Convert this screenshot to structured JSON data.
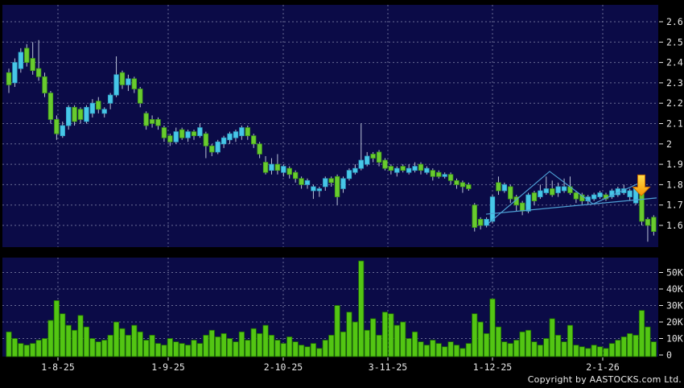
{
  "chart_data": {
    "type": "candlestick",
    "panels": [
      "price",
      "volume"
    ],
    "grid": true,
    "price_axis": {
      "side": "right",
      "ticks": [
        "2.6",
        "2.5",
        "2.4",
        "2.3",
        "2.2",
        "2.1",
        "2",
        "1.9",
        "1.8",
        "1.7",
        "1.6"
      ]
    },
    "volume_axis": {
      "side": "right",
      "ticks": [
        "50K",
        "40K",
        "30K",
        "20K",
        "10K",
        "0"
      ]
    },
    "x_ticks": [
      {
        "label": "1-8-25",
        "x": 72
      },
      {
        "label": "1-9-25",
        "x": 209
      },
      {
        "label": "2-10-25",
        "x": 352
      },
      {
        "label": "3-11-25",
        "x": 482
      },
      {
        "label": "1-12-25",
        "x": 612
      },
      {
        "label": "2-1-26",
        "x": 749
      }
    ],
    "candles_format": [
      "open",
      "high",
      "low",
      "close",
      "volume_K"
    ],
    "candles": [
      [
        2.35,
        2.37,
        2.25,
        2.29,
        14
      ],
      [
        2.3,
        2.42,
        2.28,
        2.4,
        10
      ],
      [
        2.37,
        2.47,
        2.35,
        2.45,
        7
      ],
      [
        2.47,
        2.49,
        2.38,
        2.4,
        6
      ],
      [
        2.42,
        2.5,
        2.34,
        2.36,
        7
      ],
      [
        2.37,
        2.51,
        2.31,
        2.33,
        9
      ],
      [
        2.33,
        2.35,
        2.23,
        2.25,
        10
      ],
      [
        2.25,
        2.26,
        2.1,
        2.12,
        21
      ],
      [
        2.12,
        2.14,
        2.02,
        2.05,
        33
      ],
      [
        2.04,
        2.11,
        2.03,
        2.09,
        25
      ],
      [
        2.09,
        2.19,
        2.07,
        2.18,
        18
      ],
      [
        2.18,
        2.19,
        2.09,
        2.11,
        15
      ],
      [
        2.17,
        2.18,
        2.1,
        2.12,
        24
      ],
      [
        2.11,
        2.19,
        2.1,
        2.18,
        17
      ],
      [
        2.15,
        2.22,
        2.13,
        2.2,
        10
      ],
      [
        2.21,
        2.23,
        2.15,
        2.17,
        8
      ],
      [
        2.15,
        2.18,
        2.13,
        2.17,
        9
      ],
      [
        2.2,
        2.25,
        2.17,
        2.24,
        12
      ],
      [
        2.24,
        2.43,
        2.23,
        2.34,
        20
      ],
      [
        2.35,
        2.36,
        2.27,
        2.29,
        16
      ],
      [
        2.29,
        2.34,
        2.26,
        2.32,
        12
      ],
      [
        2.32,
        2.33,
        2.25,
        2.27,
        18
      ],
      [
        2.27,
        2.28,
        2.18,
        2.2,
        14
      ],
      [
        2.15,
        2.16,
        2.07,
        2.09,
        9
      ],
      [
        2.12,
        2.14,
        2.08,
        2.1,
        12
      ],
      [
        2.12,
        2.13,
        2.07,
        2.09,
        7
      ],
      [
        2.08,
        2.09,
        2.01,
        2.03,
        6
      ],
      [
        2.04,
        2.05,
        1.99,
        2.01,
        10
      ],
      [
        2.01,
        2.08,
        2.0,
        2.06,
        8
      ],
      [
        2.07,
        2.08,
        2.02,
        2.03,
        7
      ],
      [
        2.03,
        2.07,
        2.01,
        2.06,
        6
      ],
      [
        2.06,
        2.07,
        2.02,
        2.04,
        9
      ],
      [
        2.04,
        2.1,
        2.03,
        2.08,
        7
      ],
      [
        2.05,
        2.06,
        1.93,
        1.99,
        12
      ],
      [
        1.99,
        2.0,
        1.94,
        1.96,
        15
      ],
      [
        1.96,
        2.02,
        1.95,
        2.01,
        11
      ],
      [
        2.0,
        2.04,
        1.98,
        2.03,
        13
      ],
      [
        2.02,
        2.06,
        2.0,
        2.05,
        10
      ],
      [
        2.03,
        2.07,
        2.01,
        2.06,
        8
      ],
      [
        2.04,
        2.09,
        2.02,
        2.08,
        14
      ],
      [
        2.08,
        2.09,
        2.02,
        2.04,
        9
      ],
      [
        2.04,
        2.05,
        1.98,
        2.0,
        16
      ],
      [
        2.0,
        2.01,
        1.93,
        1.95,
        13
      ],
      [
        1.91,
        1.94,
        1.85,
        1.86,
        18
      ],
      [
        1.87,
        1.93,
        1.85,
        1.9,
        12
      ],
      [
        1.9,
        1.95,
        1.85,
        1.87,
        9
      ],
      [
        1.86,
        1.9,
        1.84,
        1.89,
        7
      ],
      [
        1.88,
        1.89,
        1.83,
        1.85,
        11
      ],
      [
        1.86,
        1.87,
        1.81,
        1.83,
        8
      ],
      [
        1.83,
        1.84,
        1.78,
        1.8,
        6
      ],
      [
        1.8,
        1.83,
        1.78,
        1.82,
        5
      ],
      [
        1.77,
        1.8,
        1.73,
        1.79,
        7
      ],
      [
        1.77,
        1.79,
        1.74,
        1.78,
        4
      ],
      [
        1.79,
        1.84,
        1.77,
        1.83,
        9
      ],
      [
        1.83,
        1.84,
        1.79,
        1.81,
        12
      ],
      [
        1.84,
        1.85,
        1.7,
        1.74,
        30
      ],
      [
        1.78,
        1.84,
        1.76,
        1.83,
        14
      ],
      [
        1.83,
        1.88,
        1.82,
        1.87,
        26
      ],
      [
        1.86,
        1.9,
        1.85,
        1.88,
        20
      ],
      [
        1.88,
        2.1,
        1.87,
        1.92,
        57
      ],
      [
        1.9,
        1.96,
        1.89,
        1.94,
        15
      ],
      [
        1.95,
        1.96,
        1.91,
        1.93,
        22
      ],
      [
        1.96,
        1.97,
        1.89,
        1.91,
        12
      ],
      [
        1.92,
        1.93,
        1.87,
        1.88,
        26
      ],
      [
        1.89,
        1.9,
        1.85,
        1.87,
        25
      ],
      [
        1.86,
        1.89,
        1.84,
        1.88,
        18
      ],
      [
        1.89,
        1.9,
        1.86,
        1.87,
        20
      ],
      [
        1.86,
        1.9,
        1.85,
        1.88,
        10
      ],
      [
        1.87,
        1.91,
        1.86,
        1.89,
        14
      ],
      [
        1.9,
        1.91,
        1.85,
        1.87,
        8
      ],
      [
        1.86,
        1.89,
        1.85,
        1.88,
        6
      ],
      [
        1.87,
        1.88,
        1.82,
        1.84,
        9
      ],
      [
        1.86,
        1.87,
        1.83,
        1.84,
        7
      ],
      [
        1.84,
        1.86,
        1.83,
        1.85,
        5
      ],
      [
        1.85,
        1.86,
        1.8,
        1.82,
        8
      ],
      [
        1.82,
        1.83,
        1.78,
        1.8,
        6
      ],
      [
        1.81,
        1.82,
        1.76,
        1.79,
        4
      ],
      [
        1.8,
        1.81,
        1.77,
        1.78,
        7
      ],
      [
        1.7,
        1.71,
        1.57,
        1.59,
        25
      ],
      [
        1.63,
        1.64,
        1.58,
        1.6,
        20
      ],
      [
        1.6,
        1.64,
        1.59,
        1.63,
        13
      ],
      [
        1.62,
        1.75,
        1.61,
        1.74,
        34
      ],
      [
        1.81,
        1.84,
        1.75,
        1.77,
        17
      ],
      [
        1.77,
        1.81,
        1.76,
        1.8,
        8
      ],
      [
        1.79,
        1.8,
        1.71,
        1.73,
        7
      ],
      [
        1.74,
        1.75,
        1.67,
        1.7,
        9
      ],
      [
        1.71,
        1.72,
        1.65,
        1.67,
        14
      ],
      [
        1.67,
        1.76,
        1.66,
        1.75,
        15
      ],
      [
        1.76,
        1.77,
        1.7,
        1.72,
        8
      ],
      [
        1.74,
        1.8,
        1.73,
        1.77,
        6
      ],
      [
        1.76,
        1.84,
        1.75,
        1.78,
        10
      ],
      [
        1.78,
        1.82,
        1.74,
        1.75,
        22
      ],
      [
        1.76,
        1.81,
        1.74,
        1.79,
        12
      ],
      [
        1.77,
        1.83,
        1.76,
        1.79,
        8
      ],
      [
        1.79,
        1.84,
        1.75,
        1.76,
        18
      ],
      [
        1.76,
        1.77,
        1.71,
        1.73,
        6
      ],
      [
        1.75,
        1.76,
        1.7,
        1.72,
        5
      ],
      [
        1.72,
        1.75,
        1.7,
        1.74,
        4
      ],
      [
        1.73,
        1.76,
        1.72,
        1.75,
        6
      ],
      [
        1.74,
        1.77,
        1.73,
        1.76,
        5
      ],
      [
        1.75,
        1.76,
        1.72,
        1.73,
        4
      ],
      [
        1.74,
        1.78,
        1.73,
        1.77,
        7
      ],
      [
        1.75,
        1.79,
        1.74,
        1.78,
        9
      ],
      [
        1.76,
        1.8,
        1.75,
        1.78,
        11
      ],
      [
        1.74,
        1.78,
        1.72,
        1.77,
        13
      ],
      [
        1.71,
        1.79,
        1.7,
        1.78,
        12
      ],
      [
        1.76,
        1.8,
        1.6,
        1.62,
        27
      ],
      [
        1.63,
        1.64,
        1.52,
        1.6,
        17
      ],
      [
        1.64,
        1.65,
        1.55,
        1.57,
        8
      ]
    ],
    "trend_lines": [
      {
        "name": "support-line",
        "points": [
          {
            "x": 604,
            "price": 1.655
          },
          {
            "x": 816,
            "price": 1.735
          }
        ]
      },
      {
        "name": "zigzag-line",
        "points": [
          {
            "x": 607,
            "price": 1.61
          },
          {
            "x": 683,
            "price": 1.865
          },
          {
            "x": 737,
            "price": 1.705
          },
          {
            "x": 793,
            "price": 1.805
          }
        ]
      }
    ],
    "arrow_marker": {
      "x": 797,
      "tip_price": 1.745,
      "direction": "down"
    },
    "colors": {
      "background": "#000000",
      "panel": "#0b0b47",
      "grid": "#a7abc8",
      "up_candle": "#47c7e8",
      "up_candle_border": "#2fa3c6",
      "down_candle": "#69cb2f",
      "down_candle_border": "#3e9d14",
      "wick": "#b9c2d6",
      "volume_bar": "#53c513",
      "volume_bar_border": "#1c6b00",
      "trend_line": "#4d9fd4",
      "arrow_from": "#ffdf4d",
      "arrow_to": "#f59300",
      "arrow_stroke": "#c96b00",
      "axis_text": "#e6e6e6"
    }
  },
  "footer": {
    "copyright": "Copyright by AASTOCKS.com Ltd."
  }
}
